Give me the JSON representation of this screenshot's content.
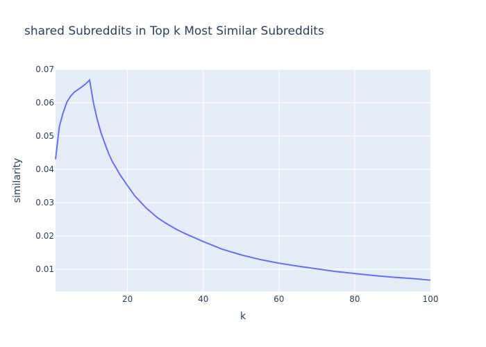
{
  "chart_data": {
    "type": "line",
    "title": "shared Subreddits in Top k Most Similar Subreddits",
    "xlabel": "k",
    "ylabel": "similarity",
    "xlim": [
      1,
      100
    ],
    "ylim": [
      0.0033,
      0.07
    ],
    "xticks": [
      20,
      40,
      60,
      80,
      100
    ],
    "yticks": [
      0.01,
      0.02,
      0.03,
      0.04,
      0.05,
      0.06,
      0.07
    ],
    "ytick_labels": [
      "0.01",
      "0.02",
      "0.03",
      "0.04",
      "0.05",
      "0.06",
      "0.07"
    ],
    "grid": true,
    "legend": false,
    "colors": {
      "line": "#636efa",
      "plot_bg": "#e5ecf6",
      "grid": "#ffffff",
      "text": "#2a3f5f"
    },
    "series": [
      {
        "x": [
          1,
          2,
          3,
          4,
          5,
          6,
          7,
          8,
          9,
          10,
          11,
          12,
          13,
          14,
          15,
          16,
          17,
          18,
          20,
          22,
          25,
          28,
          30,
          33,
          35,
          40,
          45,
          50,
          55,
          60,
          65,
          70,
          75,
          80,
          85,
          90,
          95,
          100
        ],
        "y": [
          0.043,
          0.0528,
          0.057,
          0.0602,
          0.062,
          0.0632,
          0.064,
          0.0648,
          0.0657,
          0.0668,
          0.06,
          0.055,
          0.051,
          0.0478,
          0.0448,
          0.0423,
          0.0404,
          0.0384,
          0.0351,
          0.0319,
          0.0283,
          0.0254,
          0.0239,
          0.0219,
          0.0208,
          0.0183,
          0.016,
          0.0143,
          0.0129,
          0.0118,
          0.0109,
          0.0101,
          0.0093,
          0.0087,
          0.0081,
          0.0076,
          0.0072,
          0.0067
        ]
      }
    ]
  }
}
